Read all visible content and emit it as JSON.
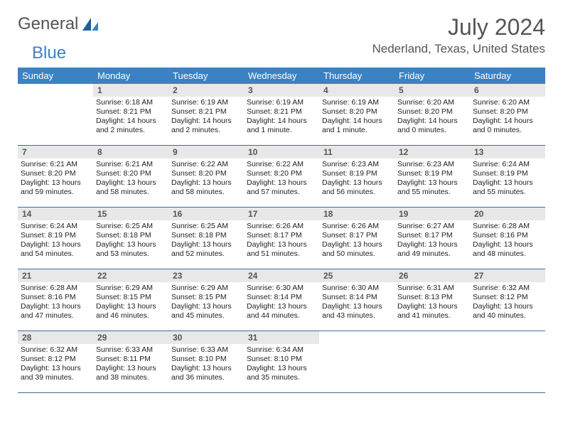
{
  "brand": {
    "word1": "General",
    "word2": "Blue"
  },
  "title": "July 2024",
  "location": "Nederland, Texas, United States",
  "header_bg": "#3b82c4",
  "header_fg": "#ffffff",
  "daynum_bg": "#e8e8e8",
  "rule_color": "#3b6ea0",
  "weekdays": [
    "Sunday",
    "Monday",
    "Tuesday",
    "Wednesday",
    "Thursday",
    "Friday",
    "Saturday"
  ],
  "weeks": [
    [
      null,
      {
        "n": "1",
        "sr": "6:18 AM",
        "ss": "8:21 PM",
        "dl": "14 hours and 2 minutes."
      },
      {
        "n": "2",
        "sr": "6:19 AM",
        "ss": "8:21 PM",
        "dl": "14 hours and 2 minutes."
      },
      {
        "n": "3",
        "sr": "6:19 AM",
        "ss": "8:21 PM",
        "dl": "14 hours and 1 minute."
      },
      {
        "n": "4",
        "sr": "6:19 AM",
        "ss": "8:20 PM",
        "dl": "14 hours and 1 minute."
      },
      {
        "n": "5",
        "sr": "6:20 AM",
        "ss": "8:20 PM",
        "dl": "14 hours and 0 minutes."
      },
      {
        "n": "6",
        "sr": "6:20 AM",
        "ss": "8:20 PM",
        "dl": "14 hours and 0 minutes."
      }
    ],
    [
      {
        "n": "7",
        "sr": "6:21 AM",
        "ss": "8:20 PM",
        "dl": "13 hours and 59 minutes."
      },
      {
        "n": "8",
        "sr": "6:21 AM",
        "ss": "8:20 PM",
        "dl": "13 hours and 58 minutes."
      },
      {
        "n": "9",
        "sr": "6:22 AM",
        "ss": "8:20 PM",
        "dl": "13 hours and 58 minutes."
      },
      {
        "n": "10",
        "sr": "6:22 AM",
        "ss": "8:20 PM",
        "dl": "13 hours and 57 minutes."
      },
      {
        "n": "11",
        "sr": "6:23 AM",
        "ss": "8:19 PM",
        "dl": "13 hours and 56 minutes."
      },
      {
        "n": "12",
        "sr": "6:23 AM",
        "ss": "8:19 PM",
        "dl": "13 hours and 55 minutes."
      },
      {
        "n": "13",
        "sr": "6:24 AM",
        "ss": "8:19 PM",
        "dl": "13 hours and 55 minutes."
      }
    ],
    [
      {
        "n": "14",
        "sr": "6:24 AM",
        "ss": "8:19 PM",
        "dl": "13 hours and 54 minutes."
      },
      {
        "n": "15",
        "sr": "6:25 AM",
        "ss": "8:18 PM",
        "dl": "13 hours and 53 minutes."
      },
      {
        "n": "16",
        "sr": "6:25 AM",
        "ss": "8:18 PM",
        "dl": "13 hours and 52 minutes."
      },
      {
        "n": "17",
        "sr": "6:26 AM",
        "ss": "8:17 PM",
        "dl": "13 hours and 51 minutes."
      },
      {
        "n": "18",
        "sr": "6:26 AM",
        "ss": "8:17 PM",
        "dl": "13 hours and 50 minutes."
      },
      {
        "n": "19",
        "sr": "6:27 AM",
        "ss": "8:17 PM",
        "dl": "13 hours and 49 minutes."
      },
      {
        "n": "20",
        "sr": "6:28 AM",
        "ss": "8:16 PM",
        "dl": "13 hours and 48 minutes."
      }
    ],
    [
      {
        "n": "21",
        "sr": "6:28 AM",
        "ss": "8:16 PM",
        "dl": "13 hours and 47 minutes."
      },
      {
        "n": "22",
        "sr": "6:29 AM",
        "ss": "8:15 PM",
        "dl": "13 hours and 46 minutes."
      },
      {
        "n": "23",
        "sr": "6:29 AM",
        "ss": "8:15 PM",
        "dl": "13 hours and 45 minutes."
      },
      {
        "n": "24",
        "sr": "6:30 AM",
        "ss": "8:14 PM",
        "dl": "13 hours and 44 minutes."
      },
      {
        "n": "25",
        "sr": "6:30 AM",
        "ss": "8:14 PM",
        "dl": "13 hours and 43 minutes."
      },
      {
        "n": "26",
        "sr": "6:31 AM",
        "ss": "8:13 PM",
        "dl": "13 hours and 41 minutes."
      },
      {
        "n": "27",
        "sr": "6:32 AM",
        "ss": "8:12 PM",
        "dl": "13 hours and 40 minutes."
      }
    ],
    [
      {
        "n": "28",
        "sr": "6:32 AM",
        "ss": "8:12 PM",
        "dl": "13 hours and 39 minutes."
      },
      {
        "n": "29",
        "sr": "6:33 AM",
        "ss": "8:11 PM",
        "dl": "13 hours and 38 minutes."
      },
      {
        "n": "30",
        "sr": "6:33 AM",
        "ss": "8:10 PM",
        "dl": "13 hours and 36 minutes."
      },
      {
        "n": "31",
        "sr": "6:34 AM",
        "ss": "8:10 PM",
        "dl": "13 hours and 35 minutes."
      },
      null,
      null,
      null
    ]
  ],
  "labels": {
    "sunrise": "Sunrise:",
    "sunset": "Sunset:",
    "daylight": "Daylight:"
  }
}
